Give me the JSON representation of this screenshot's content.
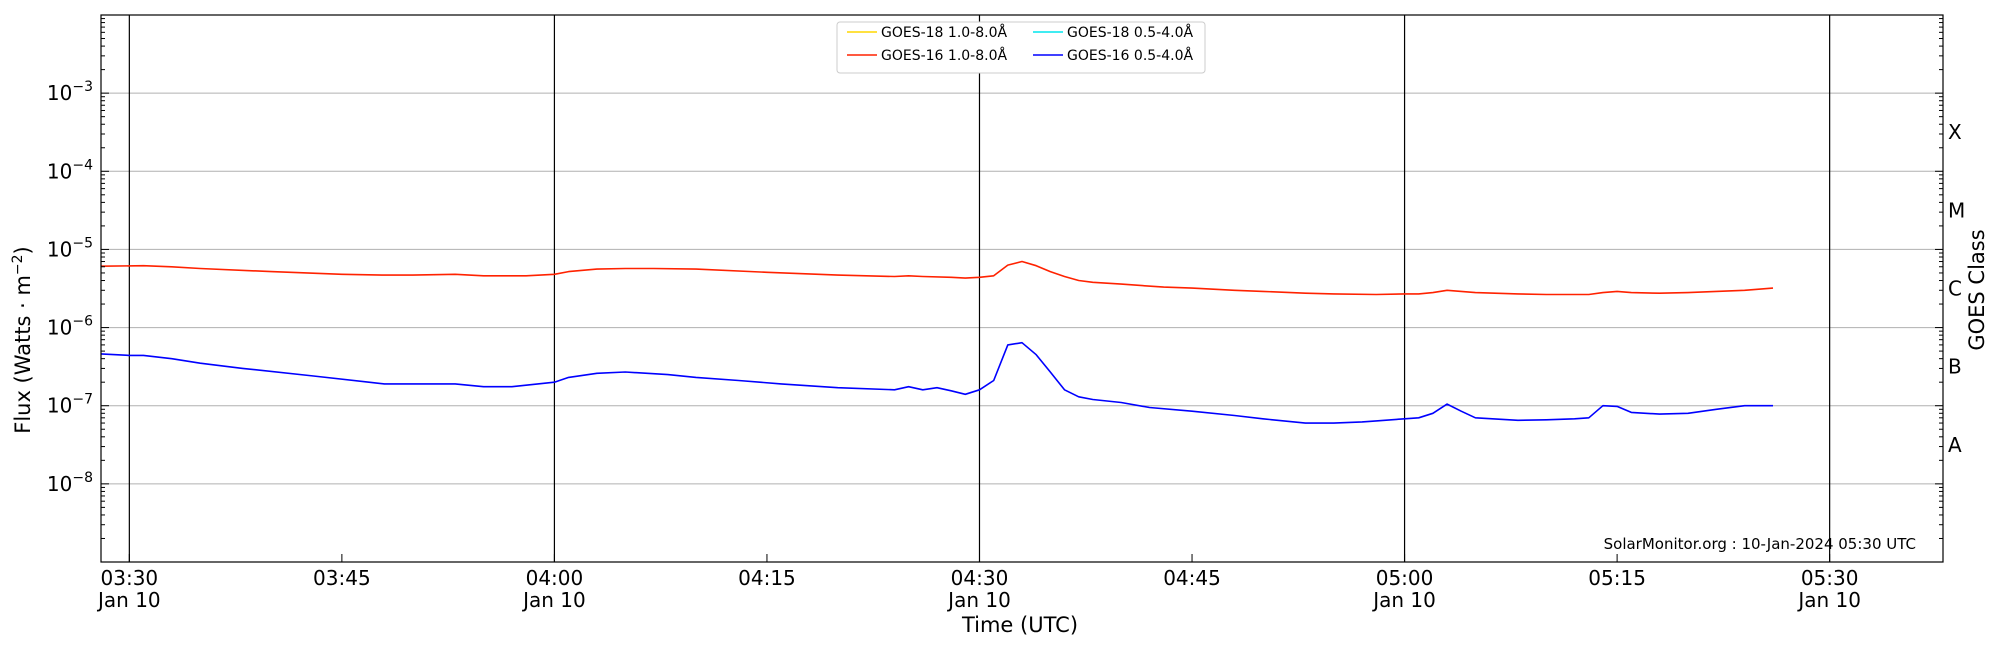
{
  "chart_data": {
    "type": "line",
    "ylabel": "Flux (Watts · m",
    "ylabel_sup": "−2",
    "ylabel_close": ")",
    "xlabel": "Time (UTC)",
    "right_label": "GOES Class",
    "annotation": "SolarMonitor.org : 10-Jan-2024 05:30 UTC",
    "y_scale": "log",
    "ylim": [
      1e-09,
      0.01
    ],
    "y_ticks": [
      {
        "value": 1e-08,
        "base": "10",
        "exp": "−8"
      },
      {
        "value": 1e-07,
        "base": "10",
        "exp": "−7"
      },
      {
        "value": 1e-06,
        "base": "10",
        "exp": "−6"
      },
      {
        "value": 1e-05,
        "base": "10",
        "exp": "−5"
      },
      {
        "value": 0.0001,
        "base": "10",
        "exp": "−4"
      },
      {
        "value": 0.001,
        "base": "10",
        "exp": "−3"
      }
    ],
    "xlim": [
      "03:28",
      "05:38"
    ],
    "x_ticks": [
      {
        "time": "03:30",
        "label": "03:30",
        "sub": "Jan 10",
        "vline": true
      },
      {
        "time": "03:45",
        "label": "03:45",
        "sub": "",
        "vline": false
      },
      {
        "time": "04:00",
        "label": "04:00",
        "sub": "Jan 10",
        "vline": true
      },
      {
        "time": "04:15",
        "label": "04:15",
        "sub": "",
        "vline": false
      },
      {
        "time": "04:30",
        "label": "04:30",
        "sub": "Jan 10",
        "vline": true
      },
      {
        "time": "04:45",
        "label": "04:45",
        "sub": "",
        "vline": false
      },
      {
        "time": "05:00",
        "label": "05:00",
        "sub": "Jan 10",
        "vline": true
      },
      {
        "time": "05:15",
        "label": "05:15",
        "sub": "",
        "vline": false
      },
      {
        "time": "05:30",
        "label": "05:30",
        "sub": "Jan 10",
        "vline": true
      }
    ],
    "goes_classes": [
      {
        "label": "X",
        "value": 0.000316
      },
      {
        "label": "M",
        "value": 3.16e-05
      },
      {
        "label": "C",
        "value": 3.16e-06
      },
      {
        "label": "B",
        "value": 3.16e-07
      },
      {
        "label": "A",
        "value": 3.16e-08
      }
    ],
    "grid": true,
    "legend_position": "top-center",
    "legend": [
      {
        "name": "GOES-18 1.0-8.0Å",
        "color": "#ffd700"
      },
      {
        "name": "GOES-18 0.5-4.0Å",
        "color": "#00e5ee"
      },
      {
        "name": "GOES-16 1.0-8.0Å",
        "color": "#ff2200"
      },
      {
        "name": "GOES-16 0.5-4.0Å",
        "color": "#0000ff"
      }
    ],
    "series": [
      {
        "name": "GOES-16 1.0-8.0Å",
        "color": "#ff2200",
        "x": [
          "03:28",
          "03:31",
          "03:33",
          "03:35",
          "03:40",
          "03:45",
          "03:48",
          "03:50",
          "03:53",
          "03:55",
          "03:58",
          "04:00",
          "04:01",
          "04:03",
          "04:05",
          "04:07",
          "04:10",
          "04:15",
          "04:20",
          "04:24",
          "04:25",
          "04:26",
          "04:28",
          "04:29",
          "04:30",
          "04:31",
          "04:32",
          "04:33",
          "04:34",
          "04:35",
          "04:36",
          "04:37",
          "04:38",
          "04:40",
          "04:43",
          "04:45",
          "04:48",
          "04:50",
          "04:53",
          "04:55",
          "04:58",
          "05:00",
          "05:01",
          "05:02",
          "05:03",
          "05:04",
          "05:05",
          "05:08",
          "05:10",
          "05:12",
          "05:13",
          "05:14",
          "05:15",
          "05:16",
          "05:18",
          "05:20",
          "05:22",
          "05:24",
          "05:26"
        ],
        "y": [
          6.1e-06,
          6.2e-06,
          6e-06,
          5.7e-06,
          5.2e-06,
          4.8e-06,
          4.7e-06,
          4.7e-06,
          4.8e-06,
          4.6e-06,
          4.6e-06,
          4.8e-06,
          5.2e-06,
          5.6e-06,
          5.7e-06,
          5.7e-06,
          5.6e-06,
          5.1e-06,
          4.7e-06,
          4.5e-06,
          4.6e-06,
          4.5e-06,
          4.4e-06,
          4.3e-06,
          4.4e-06,
          4.6e-06,
          6.3e-06,
          7e-06,
          6.2e-06,
          5.2e-06,
          4.5e-06,
          4e-06,
          3.8e-06,
          3.6e-06,
          3.3e-06,
          3.2e-06,
          3e-06,
          2.9e-06,
          2.75e-06,
          2.7e-06,
          2.65e-06,
          2.7e-06,
          2.7e-06,
          2.8e-06,
          3e-06,
          2.9e-06,
          2.8e-06,
          2.7e-06,
          2.65e-06,
          2.65e-06,
          2.65e-06,
          2.8e-06,
          2.9e-06,
          2.8e-06,
          2.75e-06,
          2.8e-06,
          2.9e-06,
          3e-06,
          3.2e-06
        ]
      },
      {
        "name": "GOES-16 0.5-4.0Å",
        "color": "#0000ff",
        "x": [
          "03:28",
          "03:30",
          "03:31",
          "03:33",
          "03:35",
          "03:38",
          "03:43",
          "03:48",
          "03:50",
          "03:53",
          "03:55",
          "03:57",
          "04:00",
          "04:01",
          "04:03",
          "04:05",
          "04:08",
          "04:10",
          "04:13",
          "04:16",
          "04:20",
          "04:24",
          "04:25",
          "04:26",
          "04:27",
          "04:28",
          "04:29",
          "04:30",
          "04:31",
          "04:32",
          "04:33",
          "04:34",
          "04:35",
          "04:36",
          "04:37",
          "04:38",
          "04:40",
          "04:42",
          "04:45",
          "04:48",
          "04:50",
          "04:53",
          "04:55",
          "04:57",
          "04:58",
          "05:00",
          "05:01",
          "05:02",
          "05:03",
          "05:04",
          "05:05",
          "05:08",
          "05:10",
          "05:12",
          "05:13",
          "05:14",
          "05:15",
          "05:16",
          "05:18",
          "05:20",
          "05:22",
          "05:24",
          "05:26"
        ],
        "y": [
          4.6e-07,
          4.4e-07,
          4.4e-07,
          4e-07,
          3.5e-07,
          3e-07,
          2.4e-07,
          1.9e-07,
          1.9e-07,
          1.9e-07,
          1.75e-07,
          1.75e-07,
          2e-07,
          2.3e-07,
          2.6e-07,
          2.7e-07,
          2.5e-07,
          2.3e-07,
          2.1e-07,
          1.9e-07,
          1.7e-07,
          1.6e-07,
          1.75e-07,
          1.6e-07,
          1.7e-07,
          1.55e-07,
          1.4e-07,
          1.6e-07,
          2.1e-07,
          6e-07,
          6.4e-07,
          4.5e-07,
          2.7e-07,
          1.6e-07,
          1.3e-07,
          1.2e-07,
          1.1e-07,
          9.5e-08,
          8.5e-08,
          7.5e-08,
          6.8e-08,
          6e-08,
          6e-08,
          6.2e-08,
          6.4e-08,
          6.8e-08,
          7e-08,
          8e-08,
          1.05e-07,
          8.5e-08,
          7e-08,
          6.5e-08,
          6.6e-08,
          6.8e-08,
          7e-08,
          1e-07,
          9.8e-08,
          8.2e-08,
          7.8e-08,
          8e-08,
          9e-08,
          1e-07,
          1e-07
        ]
      }
    ]
  }
}
